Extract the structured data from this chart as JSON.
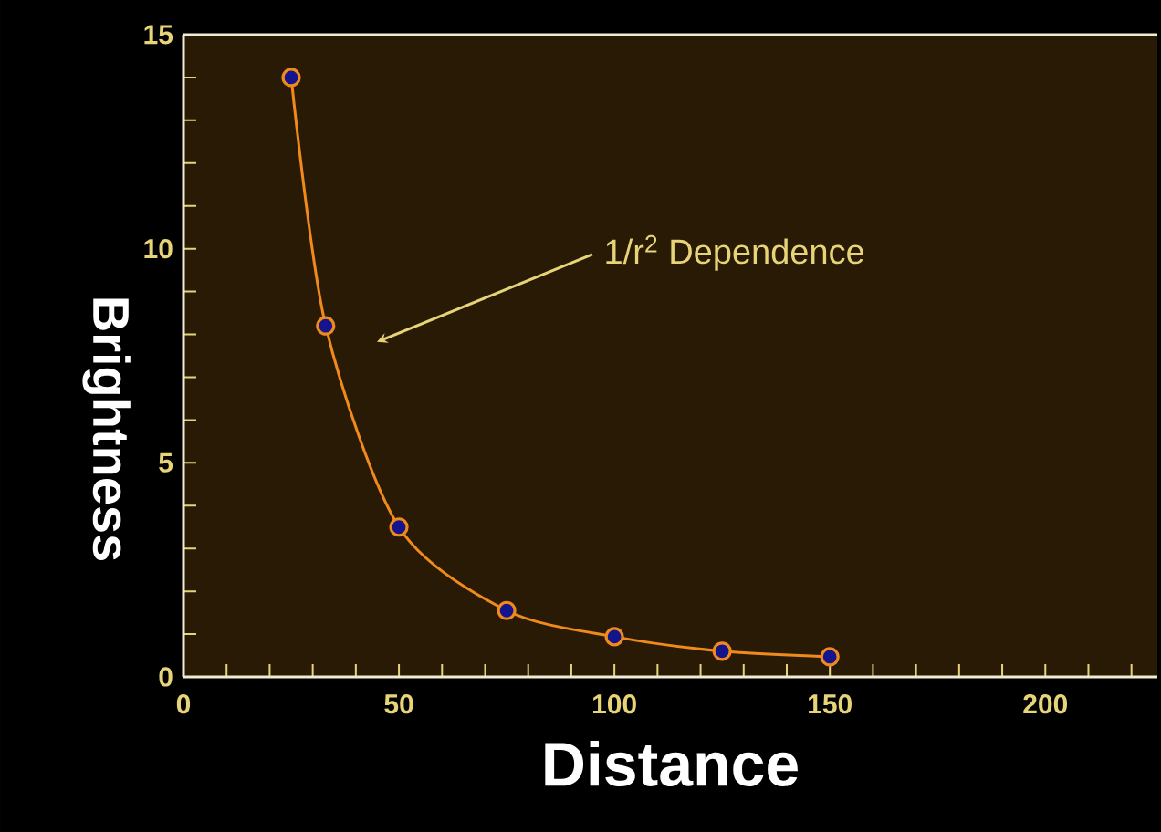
{
  "chart_data": {
    "type": "line",
    "xlabel": "Distance",
    "ylabel": "Brightness",
    "x": [
      25,
      33,
      50,
      75,
      100,
      125,
      150
    ],
    "series": [
      {
        "color": "#f08a1c",
        "values": [
          14.0,
          8.2,
          3.5,
          1.55,
          0.94,
          0.6,
          0.47
        ]
      }
    ],
    "marker": "circle",
    "line_style": "solid",
    "xlim": [
      0,
      226
    ],
    "xticks": [
      0,
      {
        "value": 10,
        "label": null
      },
      {
        "value": 20,
        "label": null
      },
      {
        "value": 30,
        "label": null
      },
      {
        "value": 40,
        "label": null
      },
      50,
      {
        "value": 60,
        "label": null
      },
      {
        "value": 70,
        "label": null
      },
      {
        "value": 80,
        "label": null
      },
      {
        "value": 90,
        "label": null
      },
      100,
      {
        "value": 110,
        "label": null
      },
      {
        "value": 120,
        "label": null
      },
      {
        "value": 130,
        "label": null
      },
      {
        "value": 140,
        "label": null
      },
      150,
      {
        "value": 160,
        "label": null
      },
      {
        "value": 170,
        "label": null
      },
      {
        "value": 180,
        "label": null
      },
      {
        "value": 190,
        "label": null
      },
      200,
      {
        "value": 210,
        "label": null
      },
      {
        "value": 220,
        "label": null
      }
    ],
    "ylim": [
      0,
      15
    ],
    "yticks": [
      0,
      {
        "value": 1,
        "label": null
      },
      {
        "value": 2,
        "label": null
      },
      {
        "value": 3,
        "label": null
      },
      {
        "value": 4,
        "label": null
      },
      5,
      {
        "value": 6,
        "label": null
      },
      {
        "value": 7,
        "label": null
      },
      {
        "value": 8,
        "label": null
      },
      {
        "value": 9,
        "label": null
      },
      10,
      {
        "value": 11,
        "label": null
      },
      {
        "value": 12,
        "label": null
      },
      {
        "value": 13,
        "label": null
      },
      {
        "value": 14,
        "label": null
      },
      15
    ],
    "annotations": [
      "1/r$^{2}$ Dependence"
    ]
  }
}
